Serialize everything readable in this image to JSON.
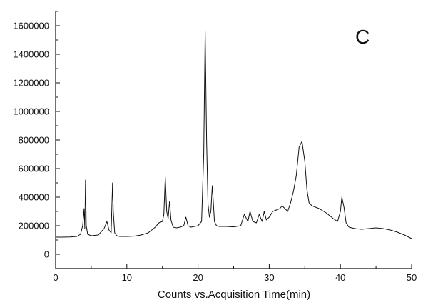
{
  "chart_data": {
    "type": "line",
    "title": "",
    "annotation": "C",
    "xlabel": "Counts vs.Acquisition Time(min)",
    "ylabel": "",
    "xlim": [
      0,
      50
    ],
    "ylim": [
      -100000,
      1700000
    ],
    "x_ticks": [
      0,
      10,
      20,
      30,
      40,
      50
    ],
    "x_tick_labels": [
      "0",
      "10",
      "20",
      "30",
      "40",
      "50"
    ],
    "y_ticks": [
      0,
      200000,
      400000,
      600000,
      800000,
      1000000,
      1200000,
      1400000,
      1600000
    ],
    "y_tick_labels": [
      "0",
      "200000",
      "400000",
      "600000",
      "800000",
      "1000000",
      "1200000",
      "1400000",
      "1600000"
    ],
    "grid": false,
    "line_color": "#111111",
    "series": [
      {
        "x": [
          0,
          1,
          2,
          3,
          3.5,
          3.8,
          4.0,
          4.1,
          4.2,
          4.3,
          4.5,
          5,
          6,
          6.8,
          7.2,
          7.5,
          7.8,
          8.0,
          8.1,
          8.3,
          8.6,
          9,
          10,
          11,
          12,
          13,
          14,
          14.5,
          15.0,
          15.2,
          15.4,
          15.6,
          15.8,
          16.0,
          16.2,
          16.5,
          17,
          17.5,
          18.0,
          18.3,
          18.6,
          19,
          19.5,
          20,
          20.5,
          20.8,
          21.0,
          21.2,
          21.4,
          21.6,
          21.8,
          22.0,
          22.1,
          22.3,
          22.6,
          23,
          24,
          25,
          26,
          26.5,
          27.0,
          27.3,
          27.7,
          28.2,
          28.6,
          29.0,
          29.3,
          29.6,
          30.0,
          30.5,
          31.0,
          31.5,
          31.8,
          32.2,
          32.6,
          33.0,
          33.4,
          33.8,
          34.2,
          34.6,
          35.0,
          35.3,
          35.6,
          36,
          37,
          38,
          39,
          39.6,
          40.0,
          40.2,
          40.5,
          40.8,
          41.2,
          42,
          43,
          44,
          45,
          46,
          47,
          48,
          49,
          50
        ],
        "y": [
          120000,
          120000,
          121000,
          125000,
          140000,
          200000,
          320000,
          180000,
          520000,
          200000,
          140000,
          130000,
          135000,
          180000,
          230000,
          170000,
          150000,
          500000,
          300000,
          150000,
          130000,
          125000,
          125000,
          127000,
          135000,
          150000,
          190000,
          220000,
          230000,
          280000,
          540000,
          300000,
          250000,
          370000,
          240000,
          190000,
          185000,
          190000,
          200000,
          260000,
          200000,
          190000,
          195000,
          200000,
          230000,
          700000,
          1560000,
          800000,
          350000,
          260000,
          300000,
          480000,
          400000,
          230000,
          200000,
          195000,
          195000,
          192000,
          200000,
          280000,
          230000,
          300000,
          230000,
          220000,
          280000,
          230000,
          300000,
          240000,
          260000,
          300000,
          310000,
          320000,
          340000,
          320000,
          300000,
          360000,
          440000,
          550000,
          750000,
          790000,
          650000,
          450000,
          360000,
          340000,
          320000,
          290000,
          250000,
          230000,
          300000,
          400000,
          330000,
          220000,
          190000,
          180000,
          175000,
          180000,
          185000,
          180000,
          170000,
          155000,
          135000,
          110000
        ]
      }
    ]
  }
}
